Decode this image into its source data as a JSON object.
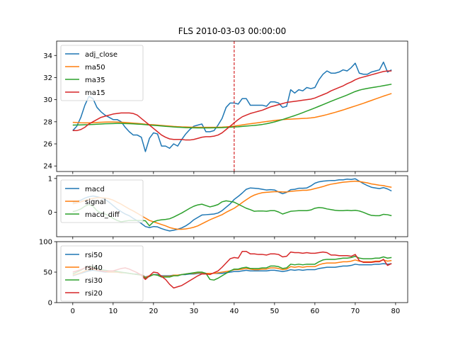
{
  "chart_data": {
    "title": "FLS 2010-03-03 00:00:00",
    "xticks": [
      0,
      10,
      20,
      30,
      40,
      50,
      60,
      70,
      80
    ],
    "xlim": [
      -4,
      83
    ],
    "vline": {
      "x": 40,
      "color": "#d62728"
    },
    "panels": [
      {
        "id": "price",
        "type": "line",
        "ylim": [
          23.5,
          35.3
        ],
        "yticks": [
          24,
          26,
          28,
          30,
          32,
          34
        ],
        "legend": "top-left",
        "series": [
          {
            "name": "adj_close",
            "color": "#1f77b4",
            "values": [
              27.2,
              27.6,
              28.4,
              29.5,
              30.3,
              30.1,
              29.3,
              28.9,
              28.6,
              28.4,
              28.2,
              28.2,
              28.0,
              27.5,
              27.1,
              26.8,
              26.8,
              26.6,
              25.3,
              26.5,
              27.0,
              26.9,
              25.8,
              25.8,
              25.6,
              26.0,
              25.8,
              26.4,
              26.9,
              27.3,
              27.6,
              27.7,
              27.8,
              27.1,
              27.1,
              27.2,
              27.7,
              28.3,
              29.3,
              29.7,
              29.7,
              29.6,
              30.1,
              30.1,
              29.5,
              29.5,
              29.5,
              29.5,
              29.4,
              29.8,
              29.8,
              29.7,
              29.3,
              29.4,
              30.9,
              30.6,
              30.9,
              30.8,
              31.1,
              31.0,
              31.1,
              31.8,
              32.3,
              32.6,
              32.4,
              32.4,
              32.5,
              32.7,
              32.6,
              32.9,
              33.3,
              32.4,
              32.3,
              32.3,
              32.5,
              32.6,
              32.7,
              33.4,
              32.5,
              32.7
            ]
          },
          {
            "name": "ma50",
            "color": "#ff7f0e",
            "values": [
              27.95,
              27.93,
              27.91,
              27.9,
              27.9,
              27.92,
              27.94,
              27.96,
              27.97,
              27.98,
              27.98,
              27.97,
              27.96,
              27.94,
              27.91,
              27.88,
              27.85,
              27.82,
              27.78,
              27.75,
              27.73,
              27.7,
              27.67,
              27.64,
              27.61,
              27.58,
              27.56,
              27.54,
              27.53,
              27.52,
              27.51,
              27.5,
              27.5,
              27.5,
              27.5,
              27.5,
              27.51,
              27.52,
              27.54,
              27.57,
              27.61,
              27.66,
              27.72,
              27.77,
              27.82,
              27.87,
              27.92,
              27.97,
              28.02,
              28.07,
              28.12,
              28.16,
              28.2,
              28.22,
              28.24,
              28.26,
              28.28,
              28.3,
              28.32,
              28.35,
              28.4,
              28.48,
              28.56,
              28.65,
              28.75,
              28.85,
              28.96,
              29.07,
              29.19,
              29.31,
              29.43,
              29.55,
              29.67,
              29.8,
              29.93,
              30.06,
              30.19,
              30.32,
              30.44,
              30.56
            ]
          },
          {
            "name": "ma35",
            "color": "#2ca02c",
            "values": [
              27.7,
              27.71,
              27.72,
              27.73,
              27.74,
              27.76,
              27.78,
              27.8,
              27.82,
              27.83,
              27.84,
              27.85,
              27.85,
              27.84,
              27.83,
              27.81,
              27.79,
              27.77,
              27.74,
              27.71,
              27.68,
              27.65,
              27.62,
              27.59,
              27.56,
              27.53,
              27.51,
              27.49,
              27.47,
              27.46,
              27.45,
              27.44,
              27.44,
              27.44,
              27.44,
              27.45,
              27.46,
              27.47,
              27.49,
              27.51,
              27.53,
              27.55,
              27.58,
              27.61,
              27.64,
              27.67,
              27.71,
              27.76,
              27.82,
              27.9,
              27.99,
              28.09,
              28.2,
              28.32,
              28.44,
              28.56,
              28.69,
              28.83,
              28.97,
              29.11,
              29.25,
              29.4,
              29.55,
              29.7,
              29.85,
              30.0,
              30.14,
              30.28,
              30.42,
              30.58,
              30.74,
              30.86,
              30.95,
              31.02,
              31.08,
              31.14,
              31.2,
              31.27,
              31.33,
              31.4
            ]
          },
          {
            "name": "ma15",
            "color": "#d62728",
            "values": [
              27.2,
              27.2,
              27.3,
              27.5,
              27.8,
              28.0,
              28.2,
              28.4,
              28.5,
              28.6,
              28.7,
              28.75,
              28.8,
              28.8,
              28.8,
              28.75,
              28.6,
              28.3,
              28.0,
              27.7,
              27.4,
              27.1,
              26.8,
              26.6,
              26.45,
              26.4,
              26.4,
              26.4,
              26.35,
              26.35,
              26.4,
              26.5,
              26.6,
              26.65,
              26.65,
              26.7,
              26.8,
              27.0,
              27.3,
              27.6,
              27.9,
              28.2,
              28.45,
              28.6,
              28.75,
              28.85,
              28.95,
              29.05,
              29.2,
              29.35,
              29.45,
              29.55,
              29.65,
              29.75,
              29.8,
              29.85,
              29.9,
              29.95,
              30.0,
              30.05,
              30.15,
              30.3,
              30.45,
              30.6,
              30.8,
              30.95,
              31.1,
              31.25,
              31.45,
              31.6,
              31.8,
              31.95,
              32.05,
              32.15,
              32.25,
              32.35,
              32.45,
              32.55,
              32.6,
              32.6
            ]
          }
        ]
      },
      {
        "id": "macd",
        "type": "line",
        "ylim": [
          -0.72,
          1.08
        ],
        "yticks": [
          0,
          1
        ],
        "legend": "top-left",
        "series": [
          {
            "name": "macd",
            "color": "#1f77b4",
            "values": [
              0.3,
              0.32,
              0.36,
              0.42,
              0.46,
              0.48,
              0.46,
              0.43,
              0.38,
              0.3,
              0.2,
              0.1,
              0.02,
              -0.05,
              -0.1,
              -0.18,
              -0.25,
              -0.33,
              -0.42,
              -0.45,
              -0.42,
              -0.43,
              -0.48,
              -0.52,
              -0.55,
              -0.53,
              -0.5,
              -0.46,
              -0.4,
              -0.32,
              -0.22,
              -0.15,
              -0.08,
              -0.07,
              -0.06,
              -0.05,
              -0.02,
              0.05,
              0.15,
              0.25,
              0.38,
              0.47,
              0.57,
              0.68,
              0.72,
              0.71,
              0.7,
              0.68,
              0.66,
              0.67,
              0.66,
              0.6,
              0.55,
              0.59,
              0.67,
              0.68,
              0.71,
              0.71,
              0.72,
              0.78,
              0.86,
              0.9,
              0.92,
              0.93,
              0.94,
              0.94,
              0.96,
              0.96,
              0.98,
              0.97,
              0.99,
              0.92,
              0.85,
              0.79,
              0.74,
              0.72,
              0.7,
              0.73,
              0.69,
              0.63
            ]
          },
          {
            "name": "signal",
            "color": "#ff7f0e",
            "values": [
              0.25,
              0.28,
              0.31,
              0.35,
              0.38,
              0.41,
              0.43,
              0.43,
              0.42,
              0.4,
              0.36,
              0.3,
              0.24,
              0.17,
              0.1,
              0.04,
              -0.03,
              -0.1,
              -0.17,
              -0.24,
              -0.28,
              -0.32,
              -0.36,
              -0.4,
              -0.45,
              -0.48,
              -0.5,
              -0.5,
              -0.49,
              -0.47,
              -0.44,
              -0.4,
              -0.34,
              -0.28,
              -0.22,
              -0.17,
              -0.12,
              -0.07,
              0.0,
              0.06,
              0.12,
              0.2,
              0.29,
              0.37,
              0.45,
              0.51,
              0.55,
              0.58,
              0.59,
              0.6,
              0.61,
              0.61,
              0.6,
              0.6,
              0.62,
              0.63,
              0.64,
              0.65,
              0.65,
              0.67,
              0.7,
              0.73,
              0.76,
              0.8,
              0.83,
              0.85,
              0.87,
              0.89,
              0.9,
              0.91,
              0.92,
              0.91,
              0.89,
              0.87,
              0.84,
              0.82,
              0.8,
              0.79,
              0.76,
              0.74
            ]
          },
          {
            "name": "macd_diff",
            "color": "#2ca02c",
            "values": [
              0.02,
              0.05,
              0.1,
              0.18,
              0.23,
              0.18,
              0.05,
              -0.02,
              -0.05,
              -0.1,
              -0.18,
              -0.24,
              -0.28,
              -0.26,
              -0.24,
              -0.24,
              -0.24,
              -0.24,
              -0.25,
              -0.4,
              -0.28,
              -0.24,
              -0.22,
              -0.21,
              -0.19,
              -0.14,
              -0.08,
              -0.02,
              0.05,
              0.12,
              0.18,
              0.22,
              0.24,
              0.2,
              0.16,
              0.19,
              0.23,
              0.31,
              0.34,
              0.32,
              0.3,
              0.24,
              0.18,
              0.12,
              0.08,
              0.03,
              0.04,
              0.04,
              0.03,
              0.05,
              0.05,
              0.01,
              -0.05,
              -0.01,
              0.03,
              0.04,
              0.05,
              0.05,
              0.05,
              0.07,
              0.12,
              0.14,
              0.13,
              0.1,
              0.08,
              0.06,
              0.05,
              0.05,
              0.06,
              0.05,
              0.06,
              0.04,
              0.0,
              -0.05,
              -0.09,
              -0.1,
              -0.1,
              -0.06,
              -0.07,
              -0.1
            ]
          }
        ]
      },
      {
        "id": "rsi",
        "type": "line",
        "ylim": [
          0,
          100
        ],
        "yticks": [
          0,
          50,
          100
        ],
        "legend": "top-left",
        "series": [
          {
            "name": "rsi50",
            "color": "#1f77b4",
            "values": [
              44,
              46,
              48,
              50,
              52,
              53,
              52,
              51,
              50,
              50,
              50,
              50,
              49,
              49,
              48,
              47,
              47,
              46,
              42,
              44,
              46,
              46,
              44,
              44,
              44,
              45,
              45,
              46,
              46,
              47,
              47,
              48,
              48,
              48,
              48,
              48,
              48,
              48,
              49,
              50,
              51,
              51,
              52,
              53,
              52,
              52,
              52,
              52,
              52,
              53,
              53,
              52,
              51,
              52,
              54,
              53,
              54,
              53,
              54,
              54,
              54,
              56,
              57,
              58,
              58,
              58,
              59,
              60,
              60,
              61,
              63,
              62,
              62,
              62,
              62,
              63,
              63,
              64,
              63,
              64
            ]
          },
          {
            "name": "rsi40",
            "color": "#ff7f0e",
            "values": [
              45,
              47,
              49,
              52,
              54,
              55,
              53,
              52,
              51,
              50,
              50,
              50,
              49,
              49,
              48,
              47,
              46,
              46,
              41,
              44,
              46,
              45,
              43,
              43,
              43,
              45,
              45,
              46,
              47,
              48,
              48,
              49,
              49,
              48,
              48,
              48,
              49,
              50,
              51,
              52,
              54,
              54,
              55,
              56,
              55,
              54,
              54,
              55,
              55,
              57,
              57,
              56,
              54,
              55,
              59,
              58,
              59,
              58,
              59,
              59,
              59,
              62,
              64,
              65,
              65,
              65,
              66,
              67,
              67,
              68,
              70,
              68,
              67,
              67,
              67,
              68,
              68,
              70,
              68,
              69
            ]
          },
          {
            "name": "rsi30",
            "color": "#2ca02c",
            "values": [
              47,
              50,
              53,
              57,
              59,
              59,
              56,
              54,
              53,
              52,
              52,
              51,
              50,
              49,
              48,
              47,
              46,
              45,
              40,
              43,
              46,
              45,
              42,
              42,
              42,
              44,
              44,
              46,
              47,
              48,
              49,
              50,
              50,
              48,
              38,
              37,
              40,
              44,
              48,
              52,
              55,
              55,
              57,
              58,
              56,
              56,
              56,
              57,
              57,
              60,
              60,
              59,
              56,
              57,
              63,
              62,
              63,
              62,
              63,
              63,
              63,
              67,
              70,
              71,
              71,
              71,
              72,
              73,
              73,
              74,
              76,
              73,
              72,
              72,
              72,
              73,
              73,
              75,
              73,
              74
            ]
          },
          {
            "name": "rsi20",
            "color": "#d62728",
            "values": [
              50,
              52,
              54,
              57,
              58,
              57,
              54,
              52,
              51,
              52,
              52,
              54,
              56,
              57,
              55,
              52,
              49,
              45,
              38,
              44,
              50,
              49,
              43,
              38,
              30,
              24,
              26,
              28,
              32,
              36,
              40,
              44,
              47,
              47,
              46,
              49,
              52,
              58,
              65,
              72,
              74,
              73,
              84,
              84,
              80,
              80,
              79,
              79,
              78,
              80,
              80,
              79,
              75,
              76,
              83,
              82,
              82,
              81,
              82,
              81,
              81,
              82,
              83,
              82,
              78,
              78,
              77,
              77,
              77,
              76,
              79,
              69,
              66,
              66,
              66,
              67,
              67,
              71,
              61,
              64
            ]
          }
        ]
      }
    ]
  }
}
